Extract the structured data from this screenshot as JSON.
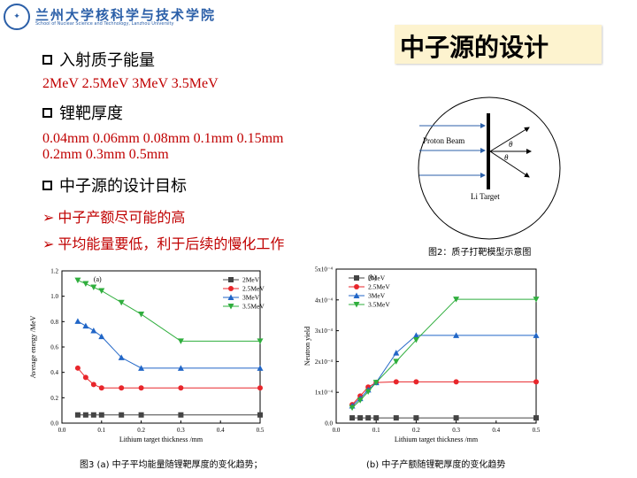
{
  "header": {
    "school_cn": "兰州大学核科学与技术学院",
    "school_en": "School of Nuclear Science and Technology, Lanzhou University"
  },
  "title": "中子源的设计",
  "sections": [
    {
      "heading": "入射质子能量",
      "lines": [
        "2MeV   2.5MeV  3MeV   3.5MeV"
      ]
    },
    {
      "heading": "锂靶厚度",
      "lines": [
        "0.04mm   0.06mm  0.08mm   0.1mm  0.15mm",
        "0.2mm     0.3mm       0.5mm"
      ]
    },
    {
      "heading": "中子源的设计目标",
      "lines": []
    }
  ],
  "goals": [
    "中子产额尽可能的高",
    "平均能量要低，利于后续的慢化工作"
  ],
  "diagram": {
    "proton_label": "Proton Beam",
    "target_label": "Li Target",
    "theta": "θ",
    "caption": "图2：质子打靶模型示意图"
  },
  "captions": {
    "fig3_a": "图3   (a) 中子平均能量随锂靶厚度的变化趋势；",
    "fig3_b": "(b) 中子产额随锂靶厚度的变化趋势"
  },
  "colors": {
    "2MeV": "#444444",
    "2.5MeV": "#e8262b",
    "3MeV": "#2166c7",
    "3.5MeV": "#2fae3d"
  },
  "chart_data": [
    {
      "type": "line",
      "panel_label": "(a)",
      "xlabel": "Lithium target thickness /mm",
      "ylabel": "Average energy /MeV",
      "xlim": [
        0.0,
        0.5
      ],
      "ylim": [
        0.0,
        1.3
      ],
      "xticks": [
        "0.0",
        "0.1",
        "0.2",
        "0.3",
        "0.4",
        "0.5"
      ],
      "yticks": [
        "0.0",
        "0.2",
        "0.4",
        "0.6",
        "0.8",
        "1.0",
        "1.2"
      ],
      "x": [
        0.04,
        0.06,
        0.08,
        0.1,
        0.15,
        0.2,
        0.3,
        0.5
      ],
      "series": [
        {
          "name": "2MeV",
          "marker": "square",
          "values": [
            0.07,
            0.07,
            0.07,
            0.07,
            0.07,
            0.07,
            0.07,
            0.07
          ]
        },
        {
          "name": "2.5MeV",
          "marker": "circle",
          "values": [
            0.47,
            0.39,
            0.33,
            0.3,
            0.3,
            0.3,
            0.3,
            0.3
          ]
        },
        {
          "name": "3MeV",
          "marker": "triangle-up",
          "values": [
            0.87,
            0.83,
            0.79,
            0.74,
            0.56,
            0.47,
            0.47,
            0.47
          ]
        },
        {
          "name": "3.5MeV",
          "marker": "triangle-down",
          "values": [
            1.22,
            1.19,
            1.16,
            1.13,
            1.03,
            0.93,
            0.7,
            0.7
          ]
        }
      ],
      "legend": "top-right"
    },
    {
      "type": "line",
      "panel_label": "(b)",
      "xlabel": "Lithium target thickness /mm",
      "ylabel": "Neutron yield",
      "xlim": [
        0.0,
        0.5
      ],
      "ylim": [
        0.0,
        0.0005
      ],
      "xticks": [
        "0.0",
        "0.1",
        "0.2",
        "0.3",
        "0.4",
        "0.5"
      ],
      "yticks": [
        "0.0",
        "1x10⁻⁴",
        "2x10⁻⁴",
        "3x10⁻⁴",
        "4x10⁻⁴",
        "5x10⁻⁴"
      ],
      "x": [
        0.04,
        0.06,
        0.08,
        0.1,
        0.15,
        0.2,
        0.3,
        0.5
      ],
      "series": [
        {
          "name": "2MeV",
          "marker": "square",
          "values": [
            1.7e-05,
            1.7e-05,
            1.7e-05,
            1.7e-05,
            1.7e-05,
            1.7e-05,
            1.7e-05,
            1.7e-05
          ]
        },
        {
          "name": "2.5MeV",
          "marker": "circle",
          "values": [
            6e-05,
            8.8e-05,
            0.000117,
            0.000132,
            0.000134,
            0.000134,
            0.000134,
            0.000134
          ]
        },
        {
          "name": "3MeV",
          "marker": "triangle-up",
          "values": [
            5.6e-05,
            8e-05,
            0.000108,
            0.000132,
            0.000228,
            0.000285,
            0.000285,
            0.000285
          ]
        },
        {
          "name": "3.5MeV",
          "marker": "triangle-down",
          "values": [
            5e-05,
            7.4e-05,
            0.000102,
            0.000132,
            0.0002,
            0.00027,
            0.000402,
            0.000402
          ]
        }
      ],
      "legend": "top-left"
    }
  ]
}
